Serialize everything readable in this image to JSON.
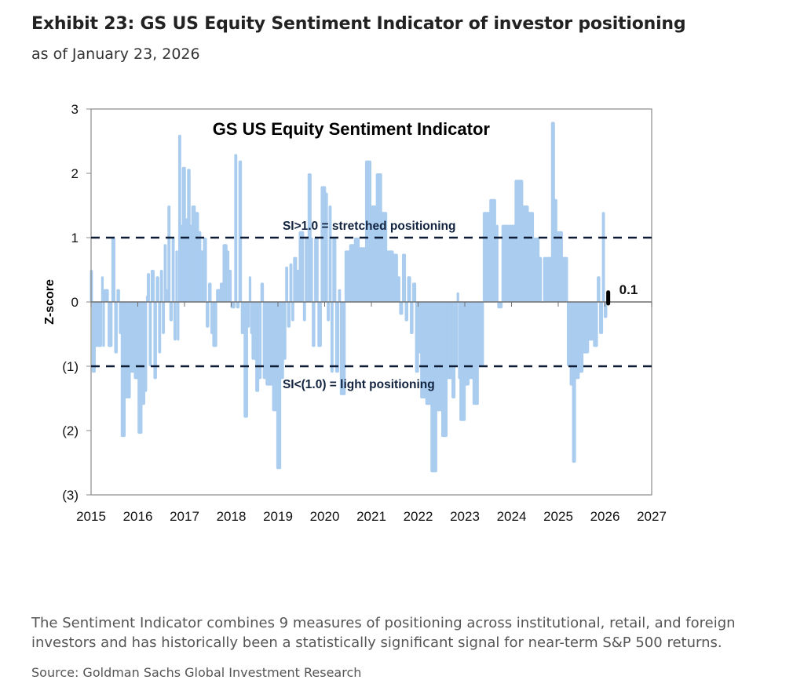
{
  "header": {
    "title": "Exhibit 23: GS US Equity Sentiment Indicator of investor positioning",
    "subtitle": "as of January 23, 2026"
  },
  "footer": {
    "caption": "The Sentiment Indicator combines 9 measures of positioning across institutional, retail, and foreign investors and has historically been a statistically significant signal for near-term S&P 500 returns.",
    "source": "Source: Goldman Sachs Global Investment Research"
  },
  "chart_data": {
    "type": "bar",
    "title": "GS US Equity  Sentiment Indicator",
    "xlabel": "",
    "ylabel": "Z-score",
    "xlim": [
      2015,
      2027
    ],
    "ylim": [
      -3,
      3
    ],
    "x_ticks": [
      "2015",
      "2016",
      "2017",
      "2018",
      "2019",
      "2020",
      "2021",
      "2022",
      "2023",
      "2024",
      "2025",
      "2026",
      "2027"
    ],
    "y_ticks": [
      {
        "v": 3,
        "label": "3"
      },
      {
        "v": 2,
        "label": "2"
      },
      {
        "v": 1,
        "label": "1"
      },
      {
        "v": 0,
        "label": "0"
      },
      {
        "v": -1,
        "label": "(1)"
      },
      {
        "v": -2,
        "label": "(2)"
      },
      {
        "v": -3,
        "label": "(3)"
      }
    ],
    "grid": false,
    "series_color": "#a9ccef",
    "thresholds": [
      {
        "value": 1,
        "label": "SI>1.0 = stretched positioning"
      },
      {
        "value": -1,
        "label": "SI<(1.0) = light positioning"
      }
    ],
    "latest": {
      "x": 2026.07,
      "value": 0.1,
      "label": "0.1"
    },
    "end_x": 2026.07,
    "points": [
      [
        2015.0,
        0.5
      ],
      [
        2015.04,
        -1.1
      ],
      [
        2015.1,
        -0.7
      ],
      [
        2015.17,
        -0.7
      ],
      [
        2015.24,
        0.4
      ],
      [
        2015.27,
        -0.7
      ],
      [
        2015.29,
        0.2
      ],
      [
        2015.38,
        -0.7
      ],
      [
        2015.46,
        1.0
      ],
      [
        2015.52,
        -0.8
      ],
      [
        2015.57,
        0.2
      ],
      [
        2015.62,
        -0.5
      ],
      [
        2015.66,
        -2.1
      ],
      [
        2015.74,
        -1.5
      ],
      [
        2015.85,
        -1.1
      ],
      [
        2015.94,
        -1.2
      ],
      [
        2016.02,
        -2.05
      ],
      [
        2016.1,
        -1.6
      ],
      [
        2016.16,
        -1.4
      ],
      [
        2016.2,
        0.1
      ],
      [
        2016.22,
        0.45
      ],
      [
        2016.26,
        -1.0
      ],
      [
        2016.3,
        0.5
      ],
      [
        2016.36,
        -1.2
      ],
      [
        2016.41,
        0.4
      ],
      [
        2016.46,
        -0.8
      ],
      [
        2016.5,
        0.5
      ],
      [
        2016.54,
        -0.5
      ],
      [
        2016.58,
        0.9
      ],
      [
        2016.62,
        0.2
      ],
      [
        2016.66,
        1.5
      ],
      [
        2016.7,
        -0.3
      ],
      [
        2016.75,
        1.0
      ],
      [
        2016.79,
        -0.6
      ],
      [
        2016.83,
        0.8
      ],
      [
        2016.86,
        -0.6
      ],
      [
        2016.89,
        2.6
      ],
      [
        2016.93,
        1.2
      ],
      [
        2016.97,
        2.1
      ],
      [
        2017.03,
        1.3
      ],
      [
        2017.08,
        2.07
      ],
      [
        2017.13,
        1.2
      ],
      [
        2017.17,
        1.5
      ],
      [
        2017.24,
        1.4
      ],
      [
        2017.31,
        1.1
      ],
      [
        2017.36,
        0.8
      ],
      [
        2017.42,
        1.0
      ],
      [
        2017.48,
        -0.4
      ],
      [
        2017.53,
        0.3
      ],
      [
        2017.58,
        -0.5
      ],
      [
        2017.62,
        -0.7
      ],
      [
        2017.7,
        0.2
      ],
      [
        2017.78,
        0.3
      ],
      [
        2017.84,
        0.9
      ],
      [
        2017.92,
        0.8
      ],
      [
        2017.96,
        0.5
      ],
      [
        2018.01,
        -0.1
      ],
      [
        2018.09,
        2.3
      ],
      [
        2018.13,
        -0.1
      ],
      [
        2018.18,
        2.2
      ],
      [
        2018.23,
        -0.5
      ],
      [
        2018.29,
        -1.8
      ],
      [
        2018.36,
        -0.4
      ],
      [
        2018.4,
        0.4
      ],
      [
        2018.43,
        -0.5
      ],
      [
        2018.46,
        -0.9
      ],
      [
        2018.54,
        -1.4
      ],
      [
        2018.6,
        -1.2
      ],
      [
        2018.65,
        0.3
      ],
      [
        2018.7,
        -1.2
      ],
      [
        2018.76,
        -1.3
      ],
      [
        2018.9,
        -1.7
      ],
      [
        2018.99,
        -2.6
      ],
      [
        2019.07,
        -1.2
      ],
      [
        2019.13,
        -0.9
      ],
      [
        2019.18,
        0.55
      ],
      [
        2019.22,
        -0.4
      ],
      [
        2019.27,
        0.6
      ],
      [
        2019.31,
        -0.3
      ],
      [
        2019.35,
        0.7
      ],
      [
        2019.41,
        0.5
      ],
      [
        2019.47,
        1.1
      ],
      [
        2019.56,
        -0.3
      ],
      [
        2019.6,
        1.0
      ],
      [
        2019.66,
        2.0
      ],
      [
        2019.72,
        1.0
      ],
      [
        2019.75,
        -0.7
      ],
      [
        2019.8,
        1.0
      ],
      [
        2019.87,
        -0.7
      ],
      [
        2019.94,
        1.8
      ],
      [
        2020.03,
        1.7
      ],
      [
        2020.07,
        -0.3
      ],
      [
        2020.11,
        1.5
      ],
      [
        2020.15,
        -1.1
      ],
      [
        2020.19,
        1.0
      ],
      [
        2020.25,
        -1.1
      ],
      [
        2020.31,
        0.2
      ],
      [
        2020.35,
        -1.45
      ],
      [
        2020.39,
        -1.45
      ],
      [
        2020.45,
        0.8
      ],
      [
        2020.55,
        0.9
      ],
      [
        2020.65,
        1.0
      ],
      [
        2020.75,
        0.85
      ],
      [
        2020.89,
        2.2
      ],
      [
        2021.0,
        1.5
      ],
      [
        2021.12,
        2.0
      ],
      [
        2021.23,
        1.4
      ],
      [
        2021.34,
        0.8
      ],
      [
        2021.48,
        0.75
      ],
      [
        2021.57,
        0.4
      ],
      [
        2021.62,
        -0.2
      ],
      [
        2021.68,
        0.75
      ],
      [
        2021.74,
        -0.3
      ],
      [
        2021.79,
        0.4
      ],
      [
        2021.85,
        -0.5
      ],
      [
        2021.9,
        0.3
      ],
      [
        2021.96,
        -1.1
      ],
      [
        2022.02,
        -0.8
      ],
      [
        2022.07,
        -1.5
      ],
      [
        2022.18,
        -1.6
      ],
      [
        2022.29,
        -2.65
      ],
      [
        2022.41,
        -1.7
      ],
      [
        2022.52,
        -2.1
      ],
      [
        2022.63,
        -1.2
      ],
      [
        2022.74,
        -1.5
      ],
      [
        2022.8,
        -1.0
      ],
      [
        2022.85,
        0.15
      ],
      [
        2022.88,
        -1.2
      ],
      [
        2022.91,
        -1.85
      ],
      [
        2023.02,
        -1.3
      ],
      [
        2023.1,
        -1.2
      ],
      [
        2023.19,
        -1.6
      ],
      [
        2023.3,
        -1.0
      ],
      [
        2023.41,
        1.4
      ],
      [
        2023.55,
        1.6
      ],
      [
        2023.67,
        1.2
      ],
      [
        2023.72,
        -0.1
      ],
      [
        2023.81,
        1.2
      ],
      [
        2023.95,
        1.2
      ],
      [
        2024.09,
        1.9
      ],
      [
        2024.25,
        1.5
      ],
      [
        2024.37,
        1.4
      ],
      [
        2024.48,
        1.0
      ],
      [
        2024.6,
        0.7
      ],
      [
        2024.65,
        0.0
      ],
      [
        2024.7,
        0.7
      ],
      [
        2024.76,
        0.7
      ],
      [
        2024.87,
        2.8
      ],
      [
        2024.93,
        1.6
      ],
      [
        2024.98,
        1.1
      ],
      [
        2025.1,
        0.7
      ],
      [
        2025.21,
        -1.0
      ],
      [
        2025.27,
        -1.3
      ],
      [
        2025.32,
        -2.5
      ],
      [
        2025.38,
        -1.2
      ],
      [
        2025.46,
        -1.1
      ],
      [
        2025.54,
        -0.8
      ],
      [
        2025.66,
        -0.6
      ],
      [
        2025.77,
        -0.7
      ],
      [
        2025.85,
        0.4
      ],
      [
        2025.9,
        -0.5
      ],
      [
        2025.96,
        1.4
      ],
      [
        2026.0,
        -0.25
      ],
      [
        2026.05,
        0.1
      ]
    ]
  }
}
